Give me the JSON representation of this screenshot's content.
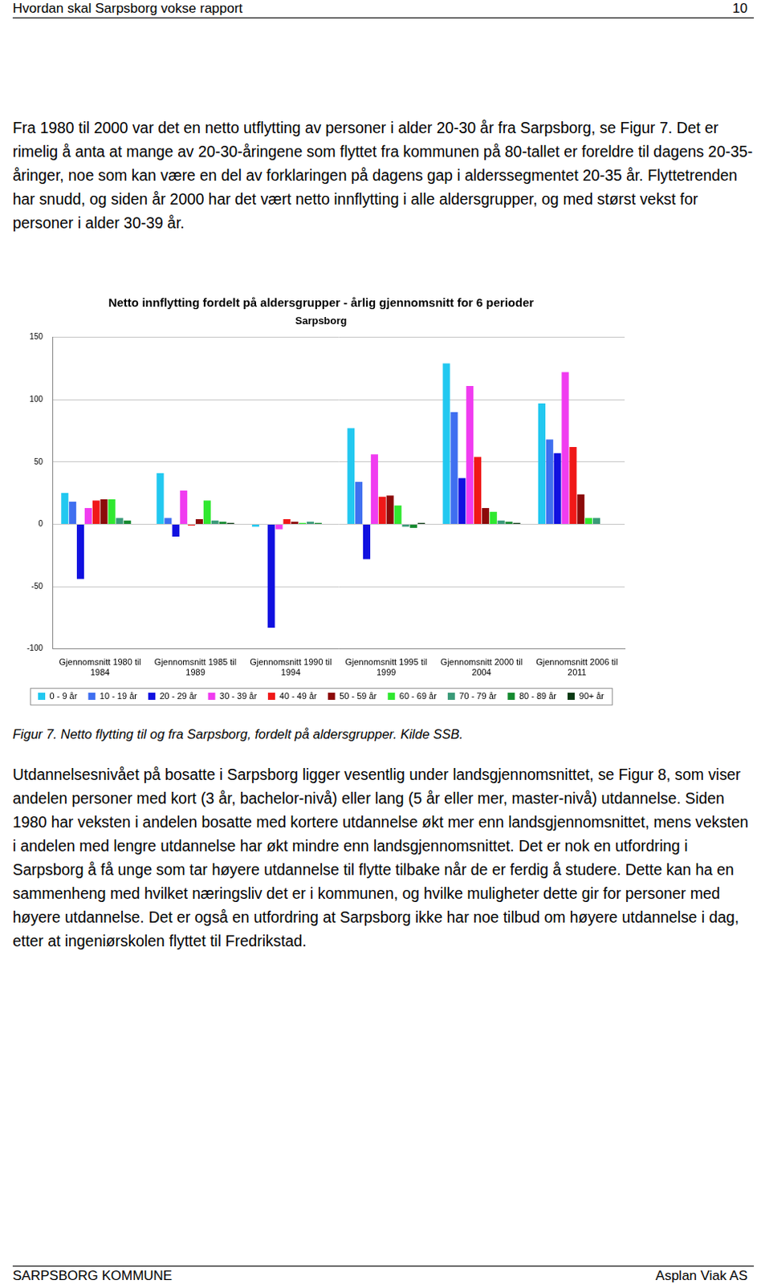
{
  "header": {
    "title": "Hvordan skal Sarpsborg vokse rapport",
    "page": "10"
  },
  "paragraphs_before": [
    "Fra 1980 til 2000 var det en netto utflytting av personer i alder 20-30 år fra Sarpsborg, se Figur 7. Det er rimelig å anta at mange av 20-30-åringene som flyttet fra kommunen på 80-tallet er foreldre til dagens 20-35-åringer, noe som kan være en del av forklaringen på dagens gap i alderssegmentet 20-35 år. Flyttetrenden har snudd, og siden år 2000 har det vært netto innflytting i alle aldersgrupper, og med størst vekst for personer i alder 30-39 år."
  ],
  "chart_data": {
    "type": "bar",
    "title": "Netto innflytting fordelt på aldersgrupper - årlig gjennomsnitt for 6 perioder",
    "subtitle": "Sarpsborg",
    "categories": [
      "Gjennomsnitt 1980 til 1984",
      "Gjennomsnitt 1985 til 1989",
      "Gjennomsnitt 1990 til 1994",
      "Gjennomsnitt 1995 til 1999",
      "Gjennomsnitt 2000 til 2004",
      "Gjennomsnitt 2006 til 2011"
    ],
    "series": [
      {
        "name": "0 - 9 år",
        "color": "#22c8f0",
        "values": [
          25,
          41,
          -2,
          77,
          129,
          97
        ]
      },
      {
        "name": "10 - 19 år",
        "color": "#3f6ff0",
        "values": [
          18,
          5,
          0,
          34,
          90,
          68
        ]
      },
      {
        "name": "20 - 29 år",
        "color": "#1010e0",
        "values": [
          -44,
          -10,
          -83,
          -28,
          37,
          57
        ]
      },
      {
        "name": "30 - 39 år",
        "color": "#f03cf0",
        "values": [
          13,
          27,
          -4,
          56,
          111,
          122
        ]
      },
      {
        "name": "40 - 49 år",
        "color": "#f01818",
        "values": [
          19,
          -1,
          4,
          22,
          54,
          62
        ]
      },
      {
        "name": "50 - 59 år",
        "color": "#8c0a0a",
        "values": [
          20,
          4,
          2,
          23,
          13,
          24
        ]
      },
      {
        "name": "60 - 69 år",
        "color": "#30e830",
        "values": [
          20,
          19,
          1,
          15,
          10,
          5
        ]
      },
      {
        "name": "70 - 79 år",
        "color": "#3a9a78",
        "values": [
          5,
          3,
          2,
          -2,
          3,
          5
        ]
      },
      {
        "name": "80 - 89 år",
        "color": "#168a30",
        "values": [
          3,
          2,
          1,
          -3,
          2,
          0
        ]
      },
      {
        "name": "90+ år",
        "color": "#0c3a14",
        "values": [
          0,
          1,
          0,
          1,
          1,
          0
        ]
      }
    ],
    "ylim": [
      -100,
      150
    ],
    "yticks": [
      -100,
      -50,
      0,
      50,
      100,
      150
    ],
    "grid": true,
    "legend": "bottom"
  },
  "caption": "Figur 7. Netto flytting til og fra Sarpsborg, fordelt på aldersgrupper. Kilde SSB.",
  "paragraphs_after": [
    "Utdannelsesnivået på bosatte i Sarpsborg ligger vesentlig under landsgjennomsnittet, se Figur 8, som viser andelen personer med kort (3 år, bachelor-nivå) eller lang (5 år eller mer, master-nivå) utdannelse. Siden 1980 har veksten i andelen bosatte med kortere utdannelse økt mer enn landsgjennomsnittet, mens veksten i andelen med lengre utdannelse har økt mindre enn landsgjennomsnittet. Det er nok en utfordring i Sarpsborg å få unge som tar høyere utdannelse til flytte tilbake når de er ferdig å studere. Dette kan ha en sammenheng med hvilket næringsliv det er i kommunen, og hvilke muligheter dette gir for personer med høyere utdannelse. Det er også en utfordring at Sarpsborg ikke har noe tilbud om høyere utdannelse i dag, etter at ingeniørskolen flyttet til Fredrikstad."
  ],
  "footer": {
    "left": "SARPSBORG KOMMUNE",
    "right": "Asplan Viak AS"
  }
}
